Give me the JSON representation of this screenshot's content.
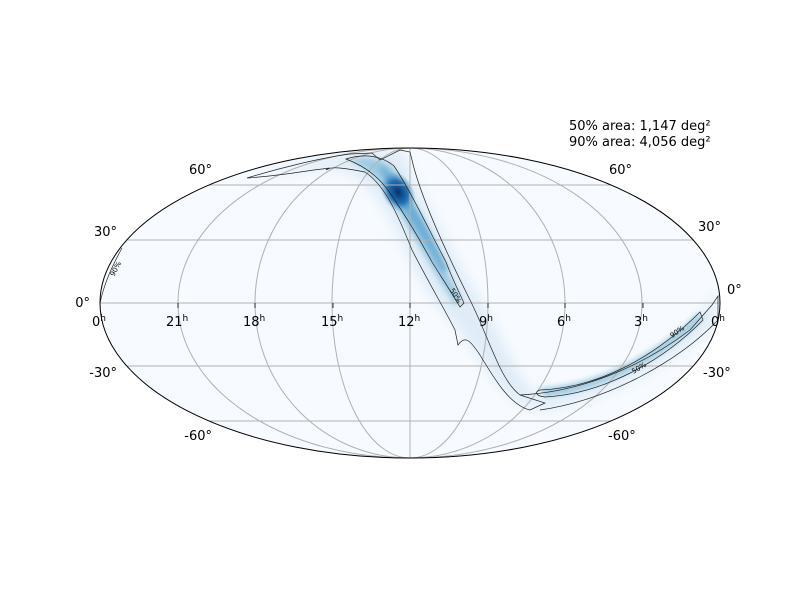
{
  "projection": "mollweide",
  "stats": {
    "area50": "50% area: 1,147 deg²",
    "area90": "90% area: 4,056 deg²"
  },
  "ra_labels": [
    {
      "text": "0",
      "sup": "h"
    },
    {
      "text": "21",
      "sup": "h"
    },
    {
      "text": "18",
      "sup": "h"
    },
    {
      "text": "15",
      "sup": "h"
    },
    {
      "text": "12",
      "sup": "h"
    },
    {
      "text": "9",
      "sup": "h"
    },
    {
      "text": "6",
      "sup": "h"
    },
    {
      "text": "3",
      "sup": "h"
    },
    {
      "text": "0",
      "sup": "h"
    }
  ],
  "dec_labels_left": [
    "60°",
    "30°",
    "0°",
    "-30°",
    "-60°"
  ],
  "dec_labels_right": [
    "60°",
    "30°",
    "0°",
    "-30°",
    "-60°"
  ],
  "contour_labels": {
    "c90": "90%",
    "c50": "50%"
  },
  "colors": {
    "background_fill": "#f7fbff",
    "grid": "#b0b0b0",
    "contour": "#222222",
    "prob_light": "#c6dbef",
    "prob_mid": "#6baed6",
    "prob_dark": "#08519c",
    "prob_peak": "#08306b"
  }
}
